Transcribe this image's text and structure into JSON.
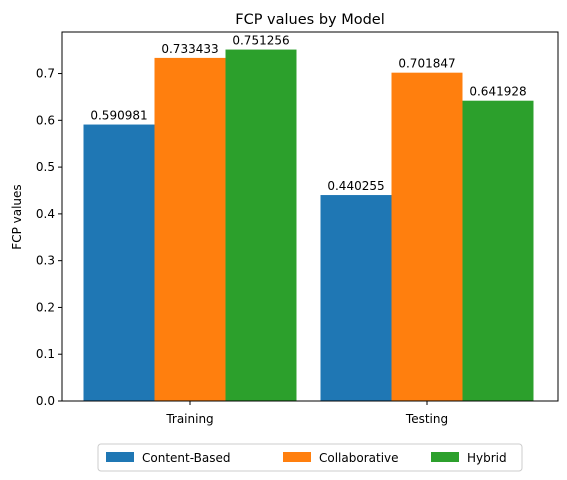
{
  "chart_data": {
    "type": "bar",
    "title": "FCP values by Model",
    "xlabel": "",
    "ylabel": "FCP values",
    "categories": [
      "Training",
      "Testing"
    ],
    "series": [
      {
        "name": "Content-Based",
        "color": "#1f77b4",
        "values": [
          0.590981,
          0.440255
        ],
        "labels": [
          "0.590981",
          "0.440255"
        ]
      },
      {
        "name": "Collaborative",
        "color": "#ff7f0e",
        "values": [
          0.733433,
          0.701847
        ],
        "labels": [
          "0.733433",
          "0.701847"
        ]
      },
      {
        "name": "Hybrid",
        "color": "#2ca02c",
        "values": [
          0.751256,
          0.641928
        ],
        "labels": [
          "0.751256",
          "0.641928"
        ]
      }
    ],
    "ylim": [
      0,
      0.7888
    ],
    "yticks": [
      0.0,
      0.1,
      0.2,
      0.3,
      0.4,
      0.5,
      0.6,
      0.7
    ],
    "ytick_labels": [
      "0.0",
      "0.1",
      "0.2",
      "0.3",
      "0.4",
      "0.5",
      "0.6",
      "0.7"
    ],
    "grid": false,
    "legend": {
      "placement": "bottom-center",
      "columns": 3
    }
  }
}
